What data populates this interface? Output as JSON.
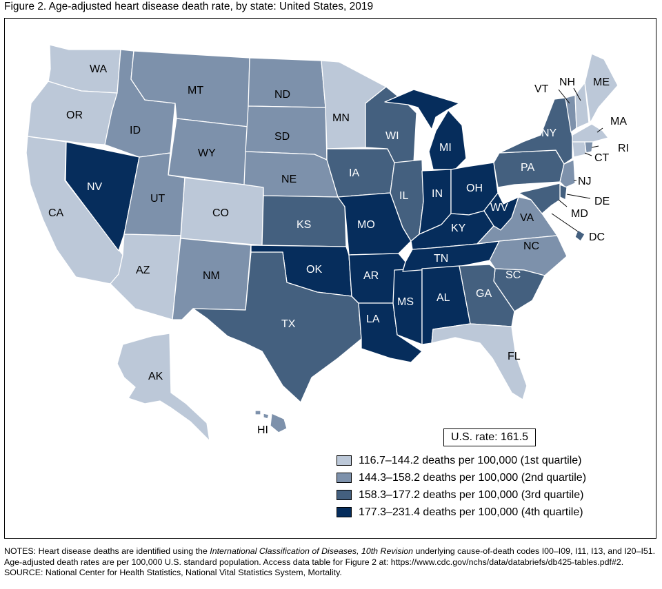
{
  "title": "Figure 2. Age-adjusted heart disease death rate, by state: United States, 2019",
  "us_rate": "U.S. rate: 161.5",
  "colors": {
    "q1": "#bcc8d8",
    "q2": "#7d91ab",
    "q3": "#44607f",
    "q4": "#062d5c"
  },
  "legend": [
    {
      "quartile": 1,
      "label": "116.7–144.2 deaths per 100,000 (1st quartile)"
    },
    {
      "quartile": 2,
      "label": "144.3–158.2 deaths per 100,000 (2nd quartile)"
    },
    {
      "quartile": 3,
      "label": "158.3–177.2 deaths per 100,000 (3rd quartile)"
    },
    {
      "quartile": 4,
      "label": "177.3–231.4 deaths per 100,000 (4th quartile)"
    }
  ],
  "state_quartiles": {
    "WA": 1,
    "OR": 1,
    "CA": 1,
    "NV": 4,
    "ID": 2,
    "MT": 2,
    "WY": 2,
    "UT": 2,
    "AZ": 1,
    "CO": 1,
    "NM": 2,
    "ND": 2,
    "SD": 2,
    "NE": 2,
    "KS": 3,
    "OK": 4,
    "TX": 3,
    "MN": 1,
    "IA": 3,
    "MO": 4,
    "AR": 4,
    "LA": 4,
    "WI": 3,
    "IL": 3,
    "MS": 4,
    "MI": 4,
    "IN": 4,
    "KY": 4,
    "TN": 4,
    "AL": 4,
    "OH": 4,
    "WV": 4,
    "VA": 2,
    "NC": 2,
    "SC": 3,
    "GA": 3,
    "FL": 1,
    "PA": 3,
    "NY": 3,
    "NJ": 2,
    "DE": 3,
    "MD": 3,
    "DC": 3,
    "VT": 2,
    "NH": 1,
    "ME": 1,
    "MA": 1,
    "CT": 1,
    "RI": 2,
    "AK": 1,
    "HI": 2
  },
  "notes_label": "NOTES: ",
  "notes_pre": "Heart disease deaths are identified using the ",
  "notes_icd": "International Classification of Diseases, 10th Revision",
  "notes_post": " underlying cause-of-death codes I00–I09, I11, I13, and I20–I51. Age-adjusted death rates are per 100,000 U.S. standard population. Access data table for Figure 2 at: https://www.cdc.gov/nchs/data/databriefs/db425-tables.pdf#2.",
  "source": "SOURCE: National Center for Health Statistics, National Vital Statistics System, Mortality."
}
